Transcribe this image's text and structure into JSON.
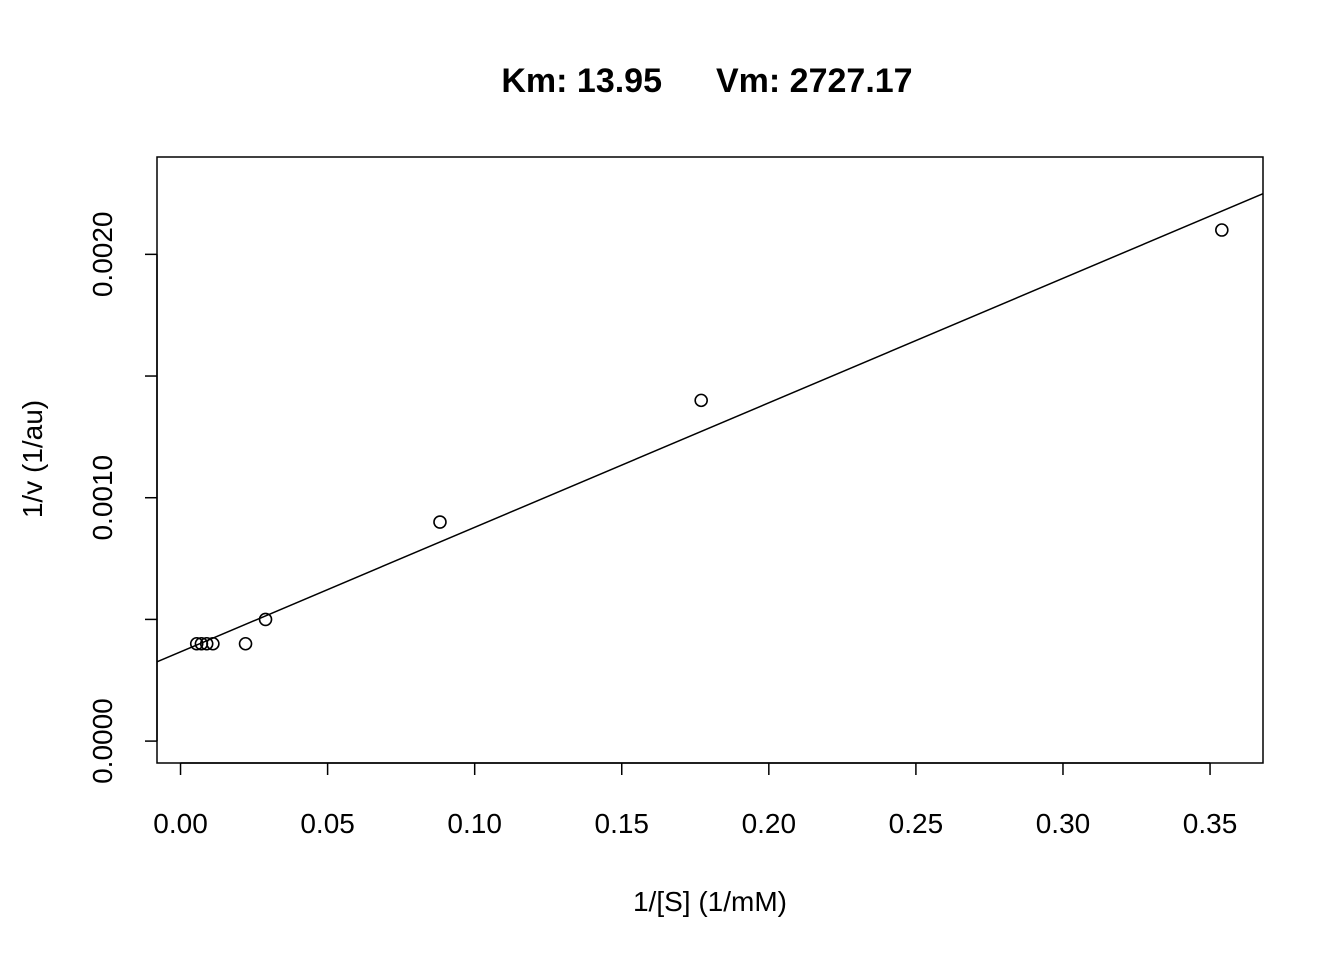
{
  "chart_data": {
    "type": "scatter",
    "title_km": "Km: 13.95",
    "title_vm": "Vm: 2727.17",
    "xlabel": "1/[S] (1/mM)",
    "ylabel": "1/v (1/au)",
    "xlim": [
      -0.008,
      0.368
    ],
    "ylim": [
      -9e-05,
      0.0024
    ],
    "x_ticks": [
      0.0,
      0.05,
      0.1,
      0.15,
      0.2,
      0.25,
      0.3,
      0.35
    ],
    "x_tick_labels": [
      "0.00",
      "0.05",
      "0.10",
      "0.15",
      "0.20",
      "0.25",
      "0.30",
      "0.35"
    ],
    "y_ticks": [
      0.0,
      0.0005,
      0.001,
      0.0015,
      0.002
    ],
    "y_tick_labels": [
      "0.0000",
      "",
      "0.0010",
      "",
      "0.0020"
    ],
    "points": {
      "x": [
        0.0055,
        0.0071,
        0.0089,
        0.011,
        0.0221,
        0.0289,
        0.0882,
        0.177,
        0.354
      ],
      "y": [
        0.0004,
        0.0004,
        0.0004,
        0.0004,
        0.0004,
        0.0005,
        0.0009,
        0.0014,
        0.0021
      ]
    },
    "fit_line": {
      "intercept": 0.0003667,
      "slope": 0.005116
    }
  }
}
